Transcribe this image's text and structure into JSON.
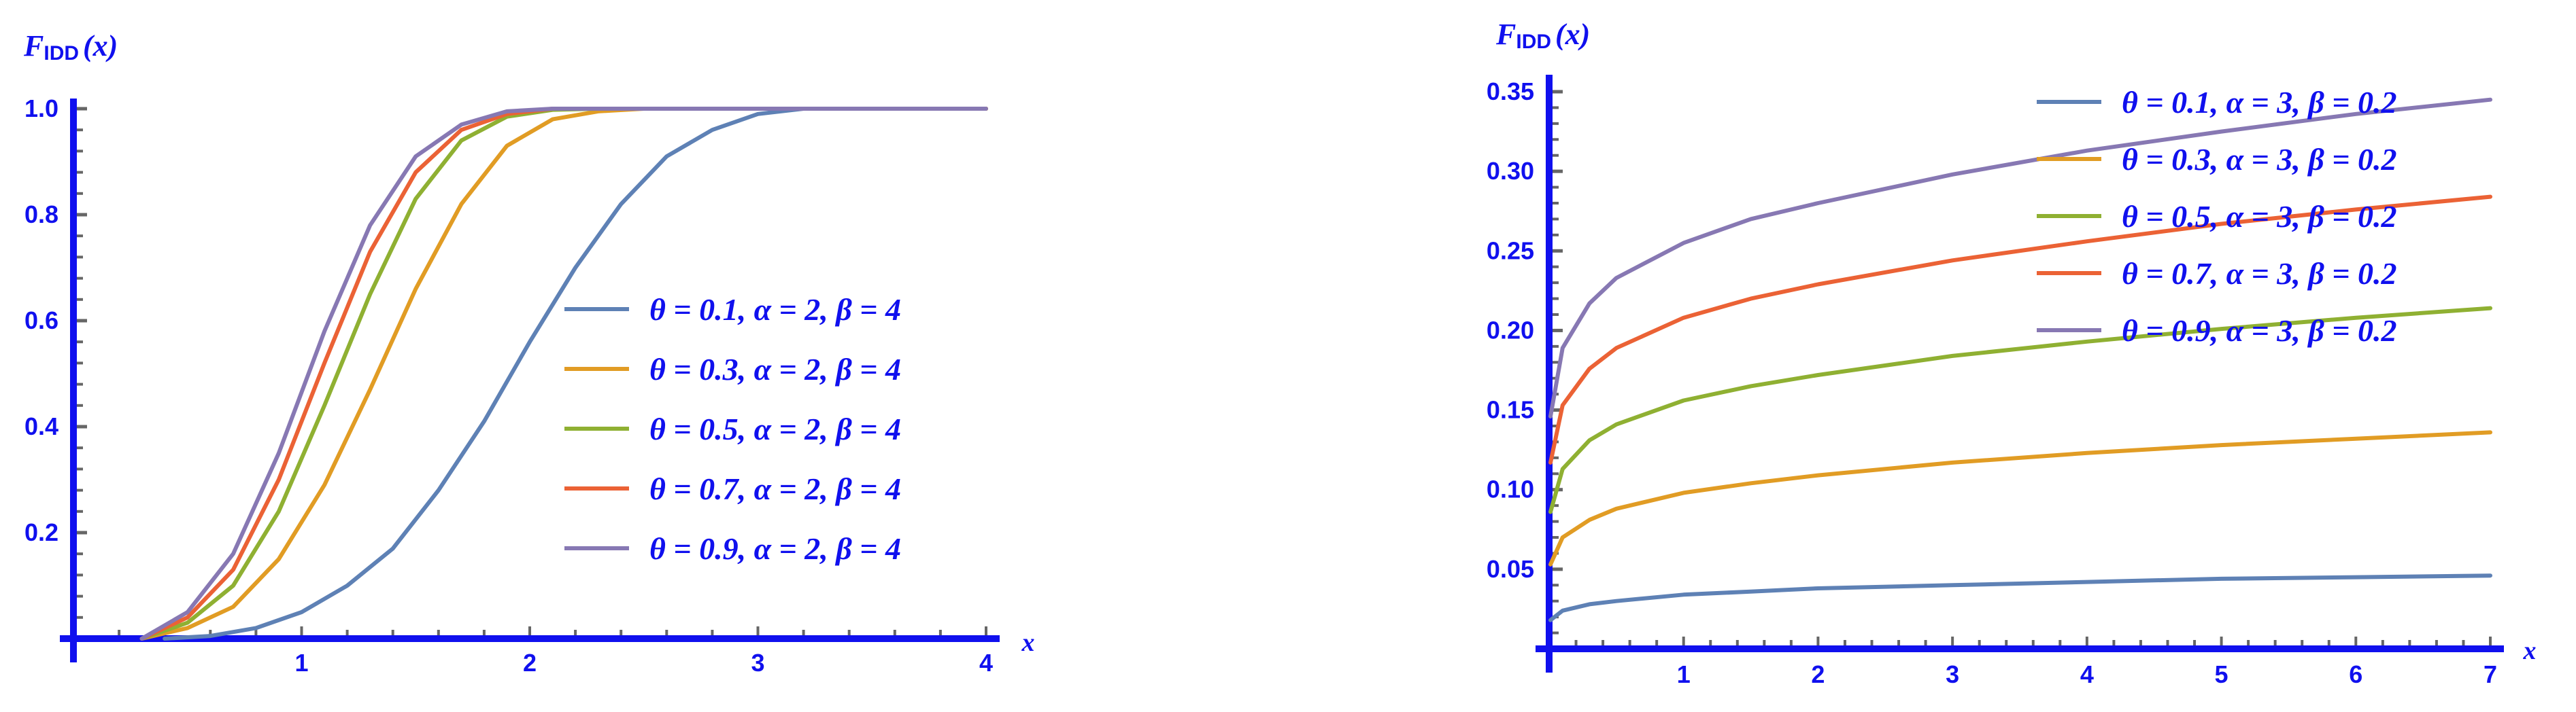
{
  "chart_data": [
    {
      "type": "line",
      "title": "",
      "ylabel_main": "F",
      "ylabel_sub": "IDD",
      "ylabel_arg": "(x)",
      "xlabel": "x",
      "xlim": [
        0,
        4
      ],
      "ylim": [
        0,
        1.0
      ],
      "xticks": [
        1,
        2,
        3,
        4
      ],
      "xtick_labels": [
        "1",
        "2",
        "3",
        "4"
      ],
      "yticks": [
        0.2,
        0.4,
        0.6,
        0.8,
        1.0
      ],
      "ytick_labels": [
        "0.2",
        "0.4",
        "0.6",
        "0.8",
        "1.0"
      ],
      "grid": false,
      "legend_position": "center-right",
      "series": [
        {
          "name": "θ = 0.1, α = 2, β = 4",
          "color": "#5e81b5",
          "x": [
            0.4,
            0.6,
            0.8,
            1.0,
            1.2,
            1.4,
            1.6,
            1.8,
            2.0,
            2.2,
            2.4,
            2.6,
            2.8,
            3.0,
            3.2,
            3.4,
            3.6,
            3.8,
            4.0
          ],
          "y": [
            0.0,
            0.005,
            0.02,
            0.05,
            0.1,
            0.17,
            0.28,
            0.41,
            0.56,
            0.7,
            0.82,
            0.91,
            0.96,
            0.99,
            1.0,
            1.0,
            1.0,
            1.0,
            1.0
          ]
        },
        {
          "name": "θ = 0.3, α = 2, β = 4",
          "color": "#e19c24",
          "x": [
            0.3,
            0.5,
            0.7,
            0.9,
            1.1,
            1.3,
            1.5,
            1.7,
            1.9,
            2.1,
            2.3,
            2.5,
            2.7,
            4.0
          ],
          "y": [
            0.0,
            0.02,
            0.06,
            0.15,
            0.29,
            0.47,
            0.66,
            0.82,
            0.93,
            0.98,
            0.995,
            1.0,
            1.0,
            1.0
          ]
        },
        {
          "name": "θ = 0.5, α = 2, β = 4",
          "color": "#8fb032",
          "x": [
            0.3,
            0.5,
            0.7,
            0.9,
            1.1,
            1.3,
            1.5,
            1.7,
            1.9,
            2.1,
            2.3,
            2.5,
            4.0
          ],
          "y": [
            0.0,
            0.03,
            0.1,
            0.24,
            0.44,
            0.65,
            0.83,
            0.94,
            0.985,
            0.998,
            1.0,
            1.0,
            1.0
          ]
        },
        {
          "name": "θ = 0.7, α = 2, β = 4",
          "color": "#eb6235",
          "x": [
            0.3,
            0.5,
            0.7,
            0.9,
            1.1,
            1.3,
            1.5,
            1.7,
            1.9,
            2.1,
            2.3,
            4.0
          ],
          "y": [
            0.0,
            0.04,
            0.13,
            0.3,
            0.52,
            0.73,
            0.88,
            0.96,
            0.99,
            1.0,
            1.0,
            1.0
          ]
        },
        {
          "name": "θ = 0.9, α = 2, β = 4",
          "color": "#8778b3",
          "x": [
            0.3,
            0.5,
            0.7,
            0.9,
            1.1,
            1.3,
            1.5,
            1.7,
            1.9,
            2.1,
            4.0
          ],
          "y": [
            0.0,
            0.05,
            0.16,
            0.35,
            0.58,
            0.78,
            0.91,
            0.97,
            0.995,
            1.0,
            1.0
          ]
        }
      ]
    },
    {
      "type": "line",
      "title": "",
      "ylabel_main": "F",
      "ylabel_sub": "IDD",
      "ylabel_arg": "(x)",
      "xlabel": "x",
      "xlim": [
        0,
        7
      ],
      "ylim": [
        0,
        0.35
      ],
      "xticks": [
        1,
        2,
        3,
        4,
        5,
        6,
        7
      ],
      "xtick_labels": [
        "1",
        "2",
        "3",
        "4",
        "5",
        "6",
        "7"
      ],
      "yticks": [
        0.05,
        0.1,
        0.15,
        0.2,
        0.25,
        0.3,
        0.35
      ],
      "ytick_labels": [
        "0.05",
        "0.10",
        "0.15",
        "0.20",
        "0.25",
        "0.30",
        "0.35"
      ],
      "grid": false,
      "legend_position": "top-right",
      "series": [
        {
          "name": "θ = 0.1, α = 3, β = 0.2",
          "color": "#5e81b5",
          "x": [
            0.01,
            0.1,
            0.3,
            0.5,
            1,
            1.5,
            2,
            3,
            4,
            5,
            6,
            7
          ],
          "y": [
            0.018,
            0.024,
            0.028,
            0.03,
            0.034,
            0.036,
            0.038,
            0.04,
            0.042,
            0.044,
            0.045,
            0.046
          ]
        },
        {
          "name": "θ = 0.3, α = 3, β = 0.2",
          "color": "#e19c24",
          "x": [
            0.01,
            0.1,
            0.3,
            0.5,
            1,
            1.5,
            2,
            3,
            4,
            5,
            6,
            7
          ],
          "y": [
            0.053,
            0.07,
            0.081,
            0.088,
            0.098,
            0.104,
            0.109,
            0.117,
            0.123,
            0.128,
            0.132,
            0.136
          ]
        },
        {
          "name": "θ = 0.5, α = 3, β = 0.2",
          "color": "#8fb032",
          "x": [
            0.01,
            0.1,
            0.3,
            0.5,
            1,
            1.5,
            2,
            3,
            4,
            5,
            6,
            7
          ],
          "y": [
            0.086,
            0.113,
            0.131,
            0.141,
            0.156,
            0.165,
            0.172,
            0.184,
            0.193,
            0.201,
            0.208,
            0.214
          ]
        },
        {
          "name": "θ = 0.7, α = 3, β = 0.2",
          "color": "#eb6235",
          "x": [
            0.01,
            0.1,
            0.3,
            0.5,
            1,
            1.5,
            2,
            3,
            4,
            5,
            6,
            7
          ],
          "y": [
            0.117,
            0.153,
            0.176,
            0.189,
            0.208,
            0.22,
            0.229,
            0.244,
            0.256,
            0.267,
            0.276,
            0.284
          ]
        },
        {
          "name": "θ = 0.9, α = 3, β = 0.2",
          "color": "#8778b3",
          "x": [
            0.01,
            0.1,
            0.3,
            0.5,
            1,
            1.5,
            2,
            3,
            4,
            5,
            6,
            7
          ],
          "y": [
            0.146,
            0.189,
            0.217,
            0.233,
            0.255,
            0.27,
            0.28,
            0.298,
            0.313,
            0.325,
            0.336,
            0.345
          ]
        }
      ]
    }
  ]
}
